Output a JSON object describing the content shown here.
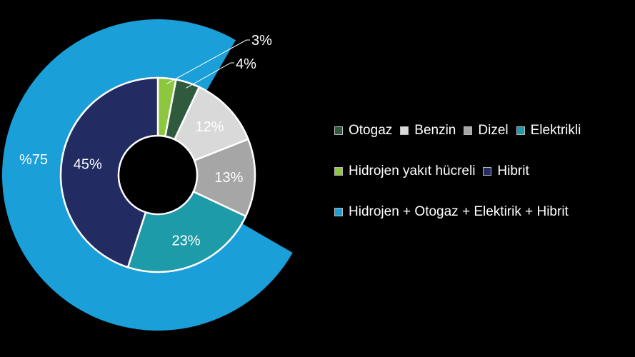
{
  "chart_data": {
    "type": "pie",
    "inner_ring": {
      "slices": [
        {
          "name": "Hidrojen yakıt hücreli",
          "value": 3,
          "label": "",
          "color": "#8dc63f"
        },
        {
          "name": "Otogaz",
          "value": 4,
          "label": "",
          "color": "#2f5a3e"
        },
        {
          "name": "Benzin",
          "value": 12,
          "label": "12%",
          "color": "#d9d9d9"
        },
        {
          "name": "Dizel",
          "value": 13,
          "label": "13%",
          "color": "#a6a6a6"
        },
        {
          "name": "Elektrikli",
          "value": 23,
          "label": "23%",
          "color": "#1e9ba8"
        },
        {
          "name": "Hibrit",
          "value": 45,
          "label": "45%",
          "color": "#232b63"
        }
      ]
    },
    "outer_ring": {
      "name": "Hidrojen + Otogaz + Elektirik + Hibrit",
      "value": 75,
      "label": "%75",
      "color": "#1a9fd9"
    },
    "callouts": [
      {
        "text": "3%",
        "series": "Hidrojen yakıt hücreli"
      },
      {
        "text": "4%",
        "series": "Otogaz"
      }
    ],
    "legend": {
      "placement": "right",
      "rows": [
        [
          {
            "label": "Otogaz",
            "color": "#2f5a3e"
          },
          {
            "label": "Benzin",
            "color": "#d9d9d9"
          },
          {
            "label": "Dizel",
            "color": "#a6a6a6"
          },
          {
            "label": "Elektrikli",
            "color": "#1e9ba8"
          }
        ],
        [
          {
            "label": "Hidrojen yakıt hücreli",
            "color": "#8dc63f"
          },
          {
            "label": "Hibrit",
            "color": "#232b63"
          }
        ],
        [
          {
            "label": "Hidrojen + Otogaz + Elektirik + Hibrit",
            "color": "#1a9fd9"
          }
        ]
      ]
    }
  }
}
